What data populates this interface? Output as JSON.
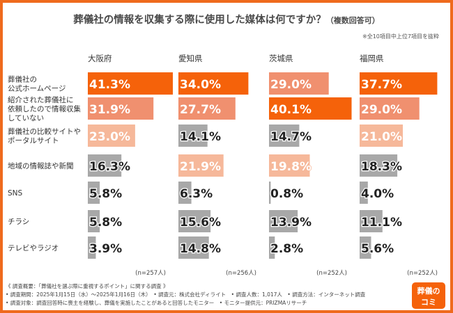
{
  "title": "葬儀社の情報を収集する際に使用した媒体は何ですか？",
  "title_suffix": "（複数回答可）",
  "note": "※全10項目中上位7項目を抜粋",
  "colors": {
    "highlight": "#f5620a",
    "second": "#f0906f",
    "third": "#f6b89a",
    "other": "#a8a8a8",
    "frame": "#ef6a1d"
  },
  "chart_data": {
    "type": "bar",
    "regions": [
      "大阪府",
      "愛知県",
      "茨城県",
      "福岡県"
    ],
    "sample_sizes": [
      "(n=257人)",
      "(n=256人)",
      "(n=252人)",
      "(n=252人)"
    ],
    "categories": [
      "葬儀社の\n公式ホームページ",
      "紹介された葬儀社に\n依頼したので情報収集\nしていない",
      "葬儀社の比較サイトや\nポータルサイト",
      "地域の情報誌や新聞",
      "SNS",
      "チラシ",
      "テレビやラジオ"
    ],
    "series": [
      {
        "name": "大阪府",
        "values": [
          41.3,
          31.9,
          23.0,
          16.3,
          5.8,
          5.8,
          3.9
        ],
        "labels": [
          "41.3%",
          "31.9%",
          "23.0%",
          "16.3%",
          "5.8%",
          "5.8%",
          "3.9%"
        ],
        "ranks": [
          1,
          2,
          3,
          0,
          0,
          0,
          0
        ]
      },
      {
        "name": "愛知県",
        "values": [
          34.0,
          27.7,
          14.1,
          21.9,
          6.3,
          15.6,
          14.8
        ],
        "labels": [
          "34.0%",
          "27.7%",
          "14.1%",
          "21.9%",
          "6.3%",
          "15.6%",
          "14.8%"
        ],
        "ranks": [
          1,
          2,
          0,
          3,
          0,
          0,
          0
        ]
      },
      {
        "name": "茨城県",
        "values": [
          29.0,
          40.1,
          14.7,
          19.8,
          0.8,
          13.9,
          2.8
        ],
        "labels": [
          "29.0%",
          "40.1%",
          "14.7%",
          "19.8%",
          "0.8%",
          "13.9%",
          "2.8%"
        ],
        "ranks": [
          2,
          1,
          0,
          3,
          0,
          0,
          0
        ]
      },
      {
        "name": "福岡県",
        "values": [
          37.7,
          29.0,
          21.0,
          18.3,
          4.0,
          11.1,
          5.6
        ],
        "labels": [
          "37.7%",
          "29.0%",
          "21.0%",
          "18.3%",
          "4.0%",
          "11.1%",
          "5.6%"
        ],
        "ranks": [
          1,
          2,
          3,
          0,
          0,
          0,
          0
        ]
      }
    ],
    "xlim": [
      0,
      41.3
    ]
  },
  "footer": [
    "《 調査概要：「葬儀社を選ぶ際に重視するポイント」に関する調査 》",
    "• 調査期間：2025年1月15日（水）～2025年1月16日（木）　• 調査元：株式会社ディライト　• 調査人数：1,017人　• 調査方法：インターネット調査",
    "• 調査対象：調査回答時に喪主を経験し、葬儀を実施したことがあると回答したモニター　• モニター提供元：PRIZMAリサーチ"
  ],
  "logo": {
    "line1": "葬儀の",
    "line2": "コミ"
  }
}
